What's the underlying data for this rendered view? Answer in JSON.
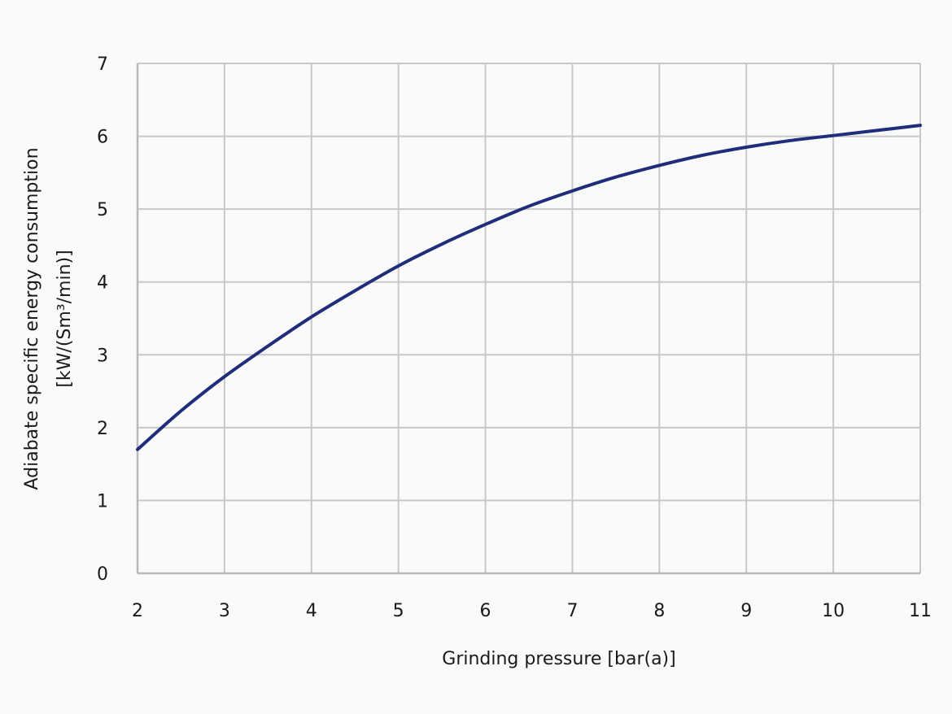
{
  "chart_data": {
    "type": "line",
    "title": "",
    "xlabel": "Grinding pressure [bar(a)]",
    "ylabel_line1": "Adiabate specific energy consumption",
    "ylabel_line2": "[kW/(Sm³/min)]",
    "xlim": [
      2,
      11
    ],
    "ylim": [
      0,
      7
    ],
    "x_ticks": [
      "2",
      "3",
      "4",
      "5",
      "6",
      "7",
      "8",
      "9",
      "10",
      "11"
    ],
    "y_ticks": [
      "0",
      "1",
      "2",
      "3",
      "4",
      "5",
      "6",
      "7"
    ],
    "grid": true,
    "legend": "none",
    "series": [
      {
        "color": "#1f2d7a",
        "x": [
          2,
          2.5,
          3,
          3.5,
          4,
          4.5,
          5,
          5.5,
          6,
          6.5,
          7,
          7.5,
          8,
          8.5,
          9,
          9.5,
          10,
          10.5,
          11
        ],
        "y": [
          1.7,
          2.23,
          2.7,
          3.12,
          3.52,
          3.88,
          4.22,
          4.52,
          4.79,
          5.04,
          5.25,
          5.44,
          5.6,
          5.74,
          5.85,
          5.94,
          6.01,
          6.08,
          6.15
        ]
      }
    ]
  }
}
